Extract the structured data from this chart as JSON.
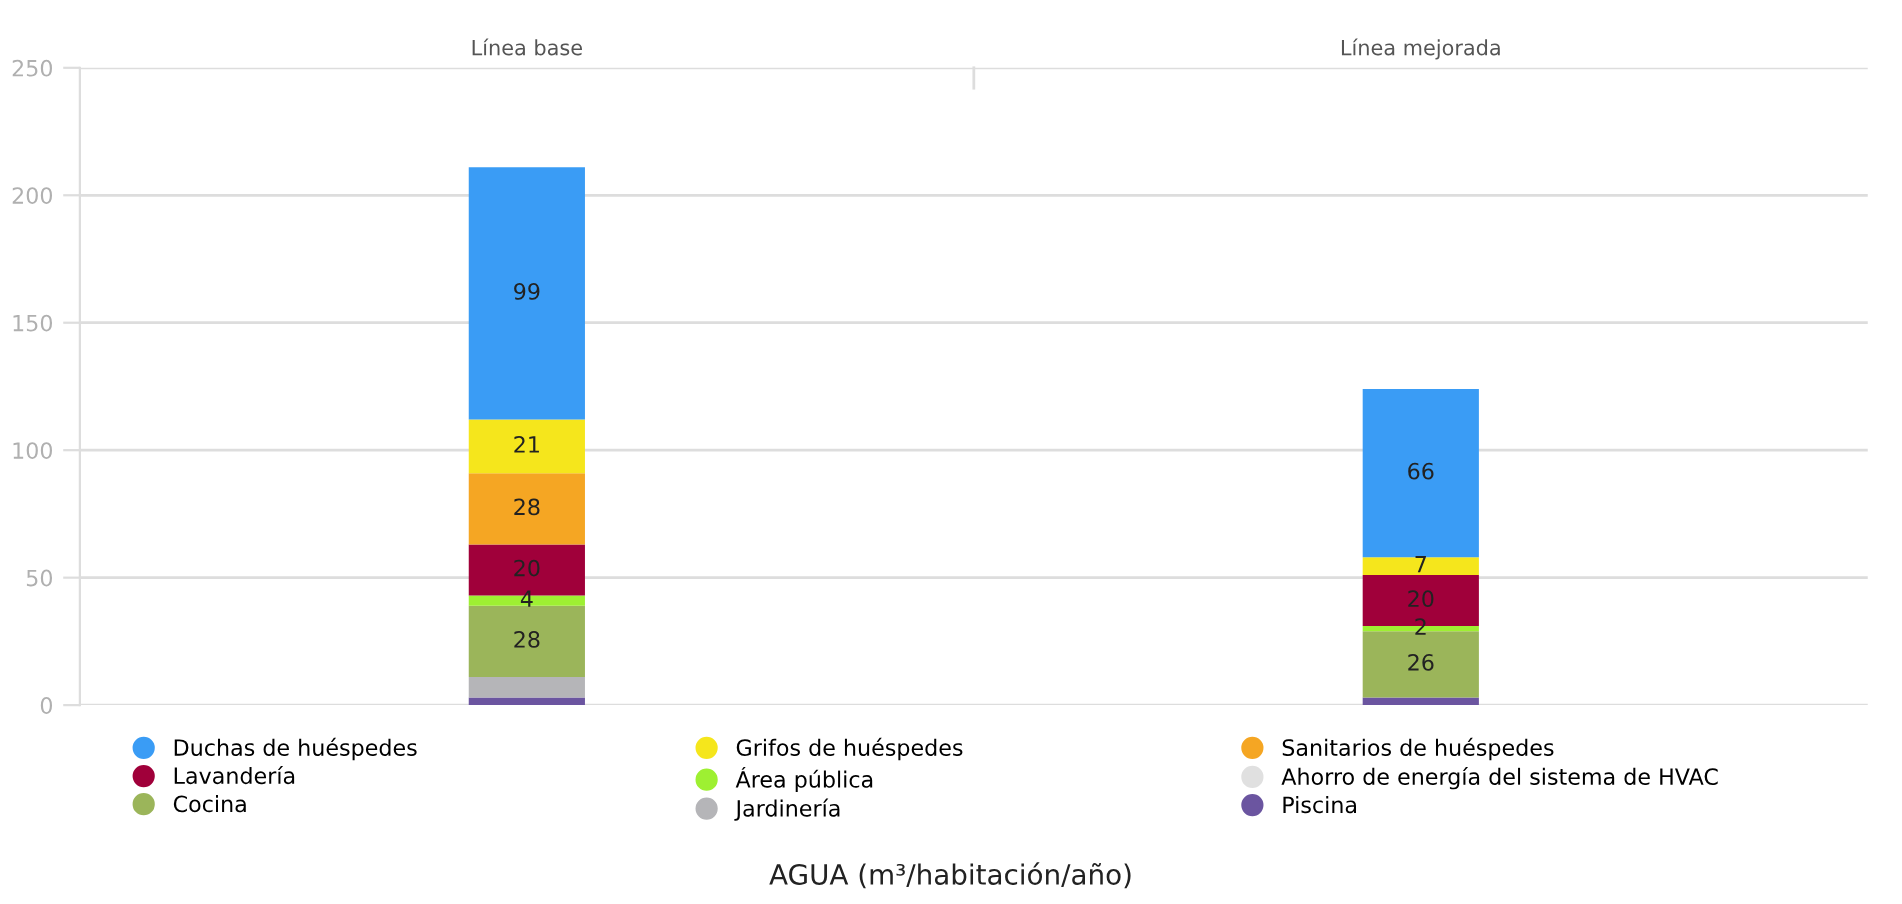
{
  "chart_data": {
    "type": "bar",
    "stacked": true,
    "categories": [
      "Línea base",
      "Línea mejorada"
    ],
    "annotations": [
      "AGUA (m³/habitación/año)"
    ],
    "ylim": [
      0,
      250
    ],
    "yticks": [
      0,
      50,
      100,
      150,
      200,
      250
    ],
    "grid": "y",
    "legend": "bottom",
    "series": [
      {
        "name": "Piscina",
        "color": "#6b55a0",
        "values": [
          3,
          3
        ]
      },
      {
        "name": "Jardinería",
        "color": "#b5b5b8",
        "values": [
          8,
          0
        ]
      },
      {
        "name": "Cocina",
        "color": "#9bb55a",
        "values": [
          28,
          26
        ],
        "value_labels": [
          "28",
          "26"
        ]
      },
      {
        "name": "Ahorro de energía del sistema de HVAC",
        "color": "#e0e0e0",
        "values": [
          0,
          0
        ]
      },
      {
        "name": "Área pública",
        "color": "#9ef032",
        "values": [
          4,
          2
        ],
        "value_labels": [
          "4",
          "2"
        ]
      },
      {
        "name": "Lavandería",
        "color": "#a0003a",
        "values": [
          20,
          20
        ],
        "value_labels": [
          "20",
          "20"
        ]
      },
      {
        "name": "Sanitarios de huéspedes",
        "color": "#f5a623",
        "values": [
          28,
          0
        ],
        "value_labels": [
          "28",
          null
        ]
      },
      {
        "name": "Grifos de huéspedes",
        "color": "#f5e61c",
        "values": [
          21,
          7
        ],
        "value_labels": [
          "21",
          "7"
        ]
      },
      {
        "name": "Duchas de huéspedes",
        "color": "#3a9cf5",
        "values": [
          99,
          66
        ],
        "value_labels": [
          "99",
          "66"
        ]
      }
    ]
  }
}
